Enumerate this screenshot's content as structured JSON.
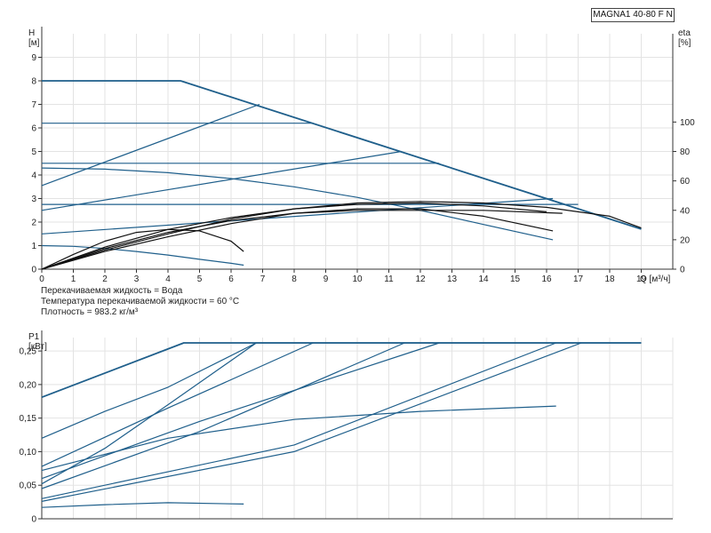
{
  "product_label": "MAGNA1 40-80 F N",
  "notes": {
    "liquid": "Перекачиваемая жидкость = Вода",
    "temperature": "Температура перекачиваемой жидкости = 60 °C",
    "density": "Плотность = 983.2 кг/м³"
  },
  "colors": {
    "curve": "#1f5f8b",
    "eta": "#111111",
    "grid": "#e3e3e3"
  },
  "chart_data": [
    {
      "type": "line",
      "title": "",
      "ylabel": "H",
      "yunit": "[м]",
      "y2label": "eta",
      "y2unit": "[%]",
      "xlabel": "Q",
      "xunit": "[м³/ч]",
      "xlim": [
        0,
        20
      ],
      "ylim": [
        0,
        10
      ],
      "y2lim": [
        0,
        160
      ],
      "x_ticks": [
        0,
        1,
        2,
        3,
        4,
        5,
        6,
        7,
        8,
        9,
        10,
        11,
        12,
        13,
        14,
        15,
        16,
        17,
        18,
        19
      ],
      "y_ticks": [
        0,
        1,
        2,
        3,
        4,
        5,
        6,
        7,
        8,
        9
      ],
      "y2_ticks": [
        0,
        20,
        40,
        60,
        80,
        100
      ],
      "grid": true,
      "series": [
        {
          "role": "max-curve",
          "x": [
            0,
            4.4,
            19
          ],
          "y": [
            8.0,
            8.0,
            1.7
          ]
        },
        {
          "role": "const-pressure",
          "x": [
            0,
            8.6
          ],
          "y": [
            6.2,
            6.2
          ]
        },
        {
          "role": "const-pressure",
          "x": [
            0,
            12.6
          ],
          "y": [
            4.5,
            4.5
          ]
        },
        {
          "role": "const-pressure",
          "x": [
            0,
            17.0
          ],
          "y": [
            2.75,
            2.75
          ]
        },
        {
          "role": "prop-pressure",
          "x": [
            0,
            6.9
          ],
          "y": [
            3.55,
            7.0
          ]
        },
        {
          "role": "prop-pressure",
          "x": [
            0,
            11.4
          ],
          "y": [
            2.5,
            5.0
          ]
        },
        {
          "role": "prop-pressure",
          "x": [
            0,
            16.2
          ],
          "y": [
            1.5,
            3.0
          ]
        },
        {
          "role": "fixed-speed",
          "x": [
            0,
            2,
            4,
            6,
            8,
            10,
            12,
            14,
            16.2
          ],
          "y": [
            4.3,
            4.25,
            4.1,
            3.85,
            3.5,
            3.05,
            2.5,
            1.9,
            1.25
          ]
        },
        {
          "role": "fixed-speed",
          "x": [
            0,
            1,
            2,
            3,
            4,
            5,
            6,
            6.4
          ],
          "y": [
            1.0,
            0.97,
            0.88,
            0.75,
            0.6,
            0.42,
            0.25,
            0.17
          ]
        },
        {
          "role": "eta",
          "x": [
            0,
            2,
            4,
            6,
            8,
            10,
            12,
            14,
            16,
            18,
            19
          ],
          "y": [
            0,
            13,
            24,
            34,
            41,
            45,
            46,
            45,
            42,
            36,
            28
          ]
        },
        {
          "role": "eta",
          "x": [
            0,
            2,
            4,
            6,
            8,
            10,
            12,
            14,
            16.2
          ],
          "y": [
            0,
            12,
            22,
            31,
            38,
            41,
            41,
            36,
            26
          ]
        },
        {
          "role": "eta",
          "x": [
            0,
            2,
            4,
            6,
            8,
            10,
            12,
            14,
            16.5
          ],
          "y": [
            0,
            14,
            25,
            33,
            38,
            40,
            40,
            40,
            38
          ]
        },
        {
          "role": "eta",
          "x": [
            0,
            2,
            4,
            6,
            8,
            10,
            12,
            14,
            16
          ],
          "y": [
            0,
            15,
            27,
            35,
            41,
            44,
            45,
            43,
            39
          ]
        },
        {
          "role": "eta",
          "x": [
            0,
            1,
            2,
            3,
            4,
            5,
            6,
            6.4
          ],
          "y": [
            0,
            10,
            19,
            25,
            27,
            26,
            19,
            12
          ]
        }
      ]
    },
    {
      "type": "line",
      "title": "",
      "ylabel": "P1",
      "yunit": "[кВт]",
      "xlim": [
        0,
        20
      ],
      "ylim": [
        0,
        0.27
      ],
      "y_ticks": [
        "0",
        "0,05",
        "0,10",
        "0,15",
        "0,20",
        "0,25"
      ],
      "y_tick_values": [
        0,
        0.05,
        0.1,
        0.15,
        0.2,
        0.25
      ],
      "grid": true,
      "series": [
        {
          "role": "max-curve",
          "x": [
            0,
            4.5,
            19
          ],
          "y": [
            0.181,
            0.262,
            0.262
          ]
        },
        {
          "role": "power",
          "x": [
            0,
            2,
            4,
            6.8,
            19
          ],
          "y": [
            0.12,
            0.16,
            0.196,
            0.262,
            0.262
          ]
        },
        {
          "role": "power",
          "x": [
            0,
            2,
            4,
            6.8
          ],
          "y": [
            0.052,
            0.105,
            0.17,
            0.262
          ]
        },
        {
          "role": "power",
          "x": [
            0,
            4,
            8.6
          ],
          "y": [
            0.078,
            0.165,
            0.262
          ]
        },
        {
          "role": "power",
          "x": [
            0,
            5,
            11.5
          ],
          "y": [
            0.045,
            0.13,
            0.262
          ]
        },
        {
          "role": "power",
          "x": [
            0,
            5,
            12.6
          ],
          "y": [
            0.06,
            0.145,
            0.262
          ]
        },
        {
          "role": "power",
          "x": [
            0,
            8,
            16.3
          ],
          "y": [
            0.03,
            0.11,
            0.262
          ]
        },
        {
          "role": "power",
          "x": [
            0,
            8,
            17.1
          ],
          "y": [
            0.026,
            0.1,
            0.262
          ]
        },
        {
          "role": "power",
          "x": [
            0,
            4,
            8,
            12,
            16.3
          ],
          "y": [
            0.072,
            0.12,
            0.148,
            0.16,
            0.168
          ]
        },
        {
          "role": "power",
          "x": [
            0,
            2,
            4,
            6.4
          ],
          "y": [
            0.017,
            0.021,
            0.024,
            0.022
          ]
        }
      ]
    }
  ]
}
